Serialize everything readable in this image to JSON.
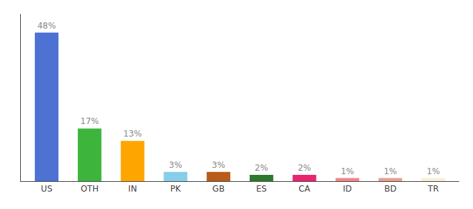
{
  "chart_data": {
    "type": "bar",
    "categories": [
      "US",
      "OTH",
      "IN",
      "PK",
      "GB",
      "ES",
      "CA",
      "ID",
      "BD",
      "TR"
    ],
    "values": [
      48,
      17,
      13,
      3,
      3,
      2,
      2,
      1,
      1,
      1
    ],
    "value_labels": [
      "48%",
      "17%",
      "13%",
      "3%",
      "3%",
      "2%",
      "2%",
      "1%",
      "1%",
      "1%"
    ],
    "colors": [
      "#4d72d4",
      "#3db53d",
      "#ffa500",
      "#87ceeb",
      "#b85c1a",
      "#2d7a2d",
      "#e8256e",
      "#f08888",
      "#e8a090",
      "#f5f0d8"
    ],
    "ylim": [
      0,
      54
    ],
    "yticks": [],
    "grid": false,
    "data_labels": true,
    "tick_labels": "x"
  }
}
